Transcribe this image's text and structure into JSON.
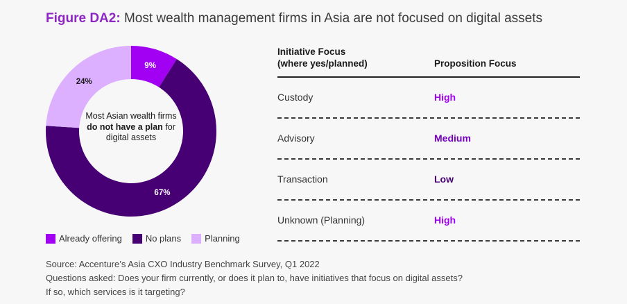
{
  "title": {
    "prefix": "Figure DA2:",
    "text": "Most wealth management firms in Asia are not focused on digital assets"
  },
  "center_text": {
    "pre": "Most Asian wealth firms",
    "bold": "do not have a plan",
    "post": "for digital assets"
  },
  "chart_data": {
    "type": "pie",
    "categories": [
      "Already offering",
      "No plans",
      "Planning"
    ],
    "values": [
      9,
      67,
      24
    ],
    "labels": [
      "9%",
      "67%",
      "24%"
    ],
    "colors": [
      "#a100f2",
      "#460073",
      "#dcafff"
    ],
    "legend": "bottom"
  },
  "legend": [
    {
      "label": "Already offering",
      "color": "#a100f2"
    },
    {
      "label": "No plans",
      "color": "#460073"
    },
    {
      "label": "Planning",
      "color": "#dcafff"
    }
  ],
  "table": {
    "header": {
      "col1_line1": "Initiative Focus",
      "col1_line2": "(where yes/planned)",
      "col2": "Proposition Focus"
    },
    "rows": [
      {
        "initiative": "Custody",
        "focus": "High",
        "color": "#a100f2"
      },
      {
        "initiative": "Advisory",
        "focus": "Medium",
        "color": "#7500c0"
      },
      {
        "initiative": "Transaction",
        "focus": "Low",
        "color": "#460073"
      },
      {
        "initiative": "Unknown (Planning)",
        "focus": "High",
        "color": "#a100f2"
      }
    ]
  },
  "source": [
    "Source: Accenture’s Asia CXO Industry Benchmark Survey, Q1 2022",
    "Questions asked: Does your firm currently, or does it plan to, have initiatives that focus on digital assets?",
    "If so, which services is it targeting?"
  ]
}
